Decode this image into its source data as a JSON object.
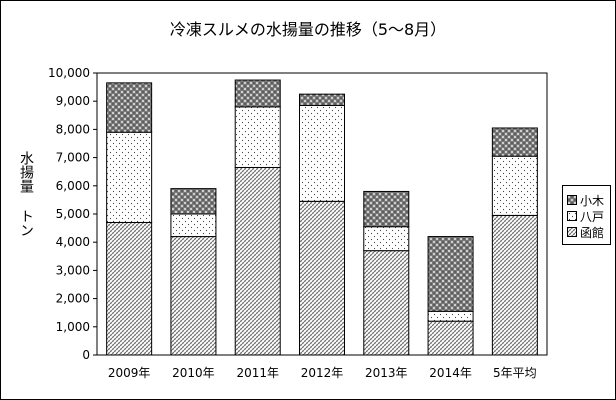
{
  "title": "冷凍スルメの水揚量の推移（5～8月）",
  "ylabel": "水揚量",
  "yunit": "トン",
  "chart_data": {
    "type": "bar",
    "stacked": true,
    "categories": [
      "2009年",
      "2010年",
      "2011年",
      "2012年",
      "2013年",
      "2014年",
      "5年平均"
    ],
    "series": [
      {
        "name": "函館",
        "values": [
          4700,
          4200,
          6650,
          5450,
          3700,
          1200,
          4950
        ]
      },
      {
        "name": "八戸",
        "values": [
          3200,
          800,
          2150,
          3400,
          850,
          350,
          2100
        ]
      },
      {
        "name": "小木",
        "values": [
          1750,
          900,
          950,
          400,
          1250,
          2650,
          1000
        ]
      }
    ],
    "ylim": [
      0,
      10000
    ],
    "yticks": [
      "0",
      "1,000",
      "2,000",
      "3,000",
      "4,000",
      "5,000",
      "6,000",
      "7,000",
      "8,000",
      "9,000",
      "10,000"
    ],
    "grid": false,
    "legend": "right"
  }
}
